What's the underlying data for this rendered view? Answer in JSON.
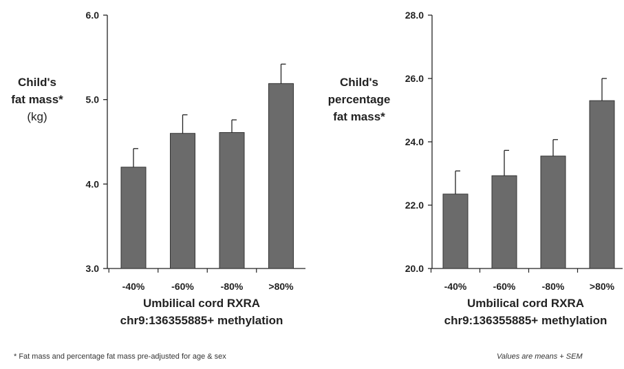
{
  "chart_data": [
    {
      "type": "bar",
      "categories": [
        "-40%",
        "-60%",
        "-80%",
        ">80%"
      ],
      "values": [
        4.2,
        4.6,
        4.61,
        5.19
      ],
      "errors": [
        0.22,
        0.22,
        0.15,
        0.23
      ],
      "ylim": [
        3.0,
        6.0
      ],
      "yticks": [
        "3.0",
        "4.0",
        "5.0",
        "6.0"
      ],
      "ylabel_lines": [
        "Child's",
        "fat mass*",
        "(kg)"
      ],
      "xlabel_lines": [
        "Umbilical cord RXRA",
        "chr9:136355885+ methylation"
      ],
      "bar_color": "#6b6b6b"
    },
    {
      "type": "bar",
      "categories": [
        "-40%",
        "-60%",
        "-80%",
        ">80%"
      ],
      "values": [
        22.35,
        22.93,
        23.55,
        25.3
      ],
      "errors": [
        0.73,
        0.8,
        0.52,
        0.7
      ],
      "ylim": [
        20.0,
        28.0
      ],
      "yticks": [
        "20.0",
        "22.0",
        "24.0",
        "26.0",
        "28.0"
      ],
      "ylabel_lines": [
        "Child's",
        "percentage",
        "fat mass*"
      ],
      "xlabel_lines": [
        "Umbilical cord RXRA",
        "chr9:136355885+ methylation"
      ],
      "bar_color": "#6b6b6b"
    }
  ],
  "footnote_left": "* Fat mass and percentage fat mass pre-adjusted for age &  sex",
  "footnote_right": "Values are means + SEM"
}
